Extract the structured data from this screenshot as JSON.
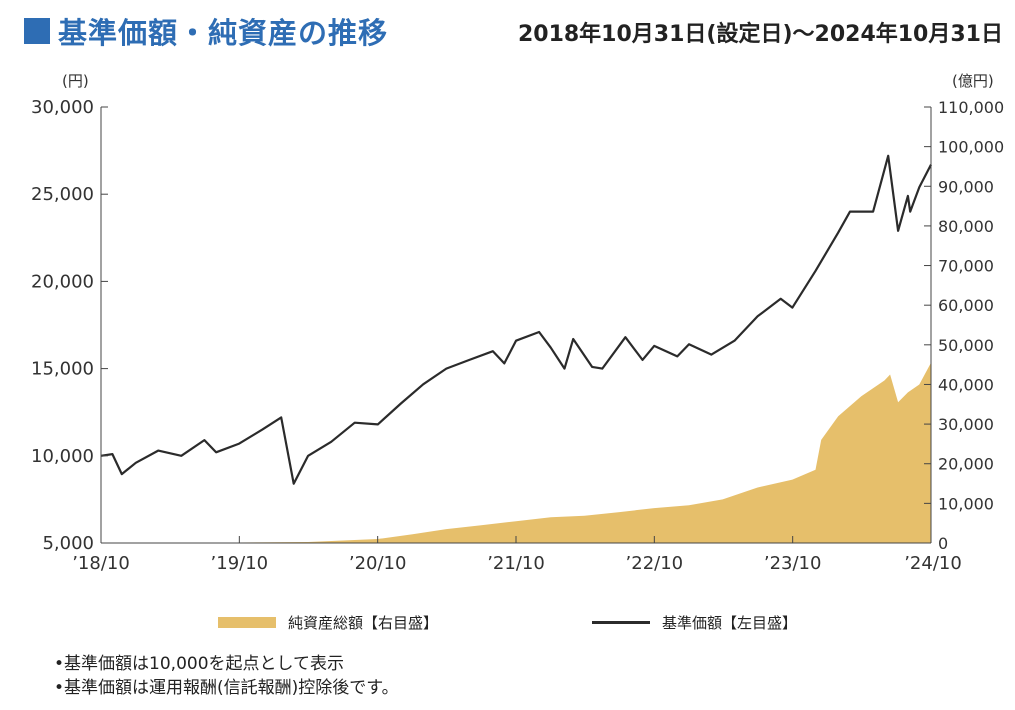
{
  "title": "基準価額・純資産の推移",
  "period": "2018年10月31日(設定日)～2024年10月31日",
  "colors": {
    "title": "#2e6db4",
    "nav_line": "#2b2b2b",
    "asset_area": "#e6bf6b"
  },
  "chart_data": {
    "type": "line+area",
    "left_axis": {
      "unit": "(円)",
      "ylim": [
        5000,
        30000
      ],
      "ticks": [
        "5,000",
        "10,000",
        "15,000",
        "20,000",
        "25,000",
        "30,000"
      ]
    },
    "right_axis": {
      "unit": "(億円)",
      "ylim": [
        0,
        110000
      ],
      "ticks": [
        "0",
        "10,000",
        "20,000",
        "30,000",
        "40,000",
        "50,000",
        "60,000",
        "70,000",
        "80,000",
        "90,000",
        "100,000",
        "110,000"
      ]
    },
    "x_ticks": [
      "’18/10",
      "’19/10",
      "’20/10",
      "’21/10",
      "’22/10",
      "’23/10",
      "’24/10"
    ],
    "x_range": [
      "2018-10-31",
      "2024-10-31"
    ],
    "series": [
      {
        "name": "純資産総額【右目盛】",
        "type": "area",
        "axis": "right",
        "points": [
          [
            "2018-10-31",
            0
          ],
          [
            "2019-04-30",
            50
          ],
          [
            "2019-10-31",
            120
          ],
          [
            "2020-04-30",
            260
          ],
          [
            "2020-10-31",
            1000
          ],
          [
            "2021-01-31",
            2200
          ],
          [
            "2021-04-30",
            3500
          ],
          [
            "2021-07-31",
            4500
          ],
          [
            "2021-10-31",
            5500
          ],
          [
            "2022-01-31",
            6500
          ],
          [
            "2022-04-30",
            6900
          ],
          [
            "2022-07-31",
            7800
          ],
          [
            "2022-10-31",
            8800
          ],
          [
            "2023-01-31",
            9500
          ],
          [
            "2023-04-30",
            11000
          ],
          [
            "2023-07-31",
            14000
          ],
          [
            "2023-10-31",
            16000
          ],
          [
            "2023-12-31",
            18500
          ],
          [
            "2024-01-15",
            26000
          ],
          [
            "2024-02-29",
            32000
          ],
          [
            "2024-04-30",
            37000
          ],
          [
            "2024-06-30",
            41000
          ],
          [
            "2024-07-15",
            42500
          ],
          [
            "2024-08-05",
            35500
          ],
          [
            "2024-08-31",
            38000
          ],
          [
            "2024-09-30",
            40000
          ],
          [
            "2024-10-31",
            45500
          ]
        ]
      },
      {
        "name": "基準価額【左目盛】",
        "type": "line",
        "axis": "left",
        "points": [
          [
            "2018-10-31",
            10000
          ],
          [
            "2018-11-30",
            10100
          ],
          [
            "2018-12-25",
            8950
          ],
          [
            "2019-01-31",
            9600
          ],
          [
            "2019-03-31",
            10300
          ],
          [
            "2019-05-31",
            10000
          ],
          [
            "2019-07-31",
            10900
          ],
          [
            "2019-08-31",
            10200
          ],
          [
            "2019-10-31",
            10700
          ],
          [
            "2019-12-31",
            11500
          ],
          [
            "2020-02-19",
            12200
          ],
          [
            "2020-03-23",
            8400
          ],
          [
            "2020-04-30",
            10000
          ],
          [
            "2020-06-30",
            10800
          ],
          [
            "2020-08-31",
            11900
          ],
          [
            "2020-10-31",
            11800
          ],
          [
            "2020-12-31",
            13000
          ],
          [
            "2021-02-28",
            14100
          ],
          [
            "2021-04-30",
            15000
          ],
          [
            "2021-06-30",
            15500
          ],
          [
            "2021-08-31",
            16000
          ],
          [
            "2021-09-30",
            15300
          ],
          [
            "2021-10-31",
            16600
          ],
          [
            "2021-12-31",
            17100
          ],
          [
            "2022-01-31",
            16200
          ],
          [
            "2022-03-08",
            15000
          ],
          [
            "2022-03-31",
            16700
          ],
          [
            "2022-05-20",
            15100
          ],
          [
            "2022-06-16",
            15000
          ],
          [
            "2022-08-16",
            16800
          ],
          [
            "2022-09-30",
            15500
          ],
          [
            "2022-10-31",
            16300
          ],
          [
            "2022-12-31",
            15700
          ],
          [
            "2023-01-31",
            16400
          ],
          [
            "2023-03-31",
            15800
          ],
          [
            "2023-05-31",
            16600
          ],
          [
            "2023-07-31",
            18000
          ],
          [
            "2023-09-30",
            19000
          ],
          [
            "2023-10-31",
            18500
          ],
          [
            "2023-12-31",
            20600
          ],
          [
            "2024-02-29",
            22800
          ],
          [
            "2024-03-31",
            24000
          ],
          [
            "2024-05-31",
            24000
          ],
          [
            "2024-07-10",
            27200
          ],
          [
            "2024-08-05",
            22900
          ],
          [
            "2024-08-31",
            24900
          ],
          [
            "2024-09-06",
            24000
          ],
          [
            "2024-09-30",
            25400
          ],
          [
            "2024-10-31",
            26700
          ]
        ]
      }
    ]
  },
  "legend": {
    "area_label": "純資産総額【右目盛】",
    "line_label": "基準価額【左目盛】"
  },
  "notes": [
    "•基準価額は10,000を起点として表示",
    "•基準価額は運用報酬(信託報酬)控除後です。"
  ]
}
